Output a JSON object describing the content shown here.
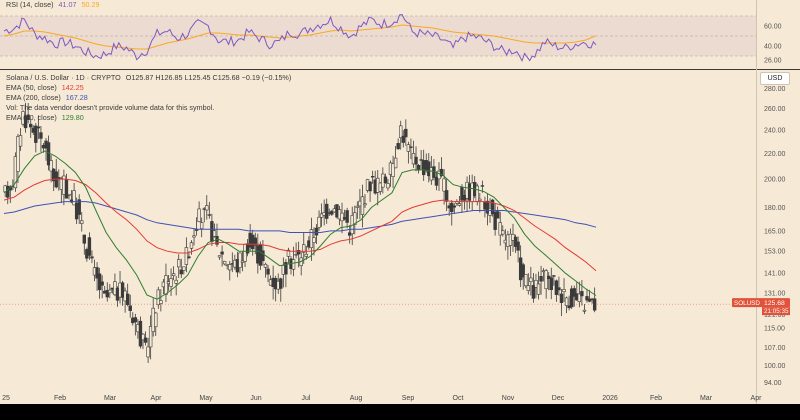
{
  "header": {
    "symbol_line": "Solana / U.S. Dollar · 1D · CRYPTO",
    "ohlc": "O125.87  H126.85  L125.45  C125.68  −0.19 (−0.15%)",
    "ema50_label": "EMA (50, close)",
    "ema50_value": "142.25",
    "ema200_label": "EMA (200, close)",
    "ema200_value": "167.28",
    "vol_note": "Vol: The data vendor doesn't provide volume data for this symbol.",
    "ema20_label": "EMA (20, close)",
    "ema20_value": "129.80",
    "rsi_label": "RSI (14, close)",
    "rsi_value": "41.07",
    "rsi_ma_value": "50.29",
    "currency": "USD"
  },
  "price_badge": {
    "symbol": "SOLUSD",
    "price": "125.68",
    "countdown": "21:05:35"
  },
  "colors": {
    "background": "#f6ead6",
    "candle_up": "#3b3b3b",
    "candle_down": "#3b3b3b",
    "candle_up_fill": "#f6ead6",
    "ema20": "#2e7d32",
    "ema50": "#e53935",
    "ema200": "#3f51b5",
    "rsi_line": "#7e57c2",
    "rsi_ma": "#f9a825",
    "rsi_band": "#e8d6cf",
    "badge": "#e0533a"
  },
  "chart_data": [
    {
      "type": "candlestick",
      "title": "Solana / U.S. Dollar · 1D · CRYPTO",
      "x_ticks": [
        "25",
        "Feb",
        "Mar",
        "Apr",
        "May",
        "Jun",
        "Jul",
        "Aug",
        "Sep",
        "Oct",
        "Nov",
        "Dec",
        "2026",
        "Feb",
        "Mar",
        "Apr"
      ],
      "y_ticks": [
        94.0,
        100.0,
        107.0,
        115.0,
        121.0,
        131.0,
        141.0,
        153.0,
        165.0,
        180.0,
        200.0,
        220.0,
        240.0,
        260.0,
        280.0
      ],
      "y_scale": "log",
      "ylim": [
        90,
        300
      ],
      "close_weekly": [
        185,
        200,
        255,
        240,
        228,
        200,
        195,
        185,
        160,
        140,
        128,
        132,
        130,
        118,
        105,
        125,
        138,
        142,
        150,
        172,
        175,
        155,
        148,
        145,
        158,
        152,
        140,
        135,
        148,
        150,
        158,
        170,
        182,
        178,
        168,
        182,
        198,
        196,
        205,
        242,
        218,
        212,
        205,
        198,
        178,
        190,
        192,
        188,
        175,
        162,
        158,
        138,
        132,
        138,
        135,
        130,
        128,
        126,
        125.68
      ],
      "series": [
        {
          "name": "EMA (20, close)",
          "last": 129.8
        },
        {
          "name": "EMA (50, close)",
          "last": 142.25
        },
        {
          "name": "EMA (200, close)",
          "last": 167.28
        }
      ],
      "ema20": [
        190,
        196,
        208,
        218,
        222,
        218,
        212,
        205,
        194,
        178,
        164,
        155,
        148,
        140,
        130,
        128,
        131,
        135,
        140,
        150,
        158,
        160,
        157,
        153,
        153,
        153,
        149,
        145,
        146,
        147,
        150,
        156,
        163,
        167,
        168,
        172,
        180,
        185,
        190,
        205,
        207,
        207,
        206,
        203,
        196,
        194,
        193,
        191,
        187,
        180,
        173,
        163,
        156,
        151,
        146,
        141,
        137,
        133,
        129.8
      ],
      "ema50": [
        185,
        187,
        192,
        196,
        199,
        200,
        200,
        199,
        196,
        190,
        183,
        177,
        172,
        166,
        159,
        155,
        153,
        152,
        152,
        154,
        157,
        158,
        158,
        157,
        157,
        157,
        156,
        154,
        153,
        153,
        153,
        154,
        157,
        159,
        160,
        162,
        165,
        168,
        171,
        177,
        180,
        182,
        184,
        185,
        184,
        184,
        184,
        184,
        183,
        181,
        178,
        173,
        168,
        164,
        160,
        155,
        151,
        147,
        142.25
      ],
      "ema200": [
        176,
        177,
        179,
        181,
        182,
        183,
        184,
        184,
        184,
        183,
        181,
        179,
        177,
        175,
        172,
        170,
        169,
        168,
        167,
        166,
        166,
        166,
        166,
        166,
        165,
        165,
        165,
        165,
        164,
        164,
        164,
        164,
        165,
        165,
        166,
        166,
        167,
        168,
        169,
        171,
        172,
        173,
        174,
        175,
        176,
        177,
        178,
        178,
        178,
        178,
        177,
        176,
        175,
        174,
        173,
        172,
        170,
        169,
        167.28
      ],
      "last_price": 125.68
    },
    {
      "type": "line",
      "title": "RSI (14, close)",
      "y_ticks": [
        26.0,
        40.0,
        60.0
      ],
      "ylim": [
        20,
        80
      ],
      "band": [
        30,
        70
      ],
      "series": [
        {
          "name": "RSI (14, close)",
          "last": 41.07,
          "values": [
            55,
            58,
            66,
            52,
            48,
            42,
            44,
            40,
            34,
            30,
            32,
            40,
            38,
            30,
            36,
            52,
            55,
            48,
            52,
            62,
            60,
            46,
            44,
            46,
            54,
            48,
            42,
            44,
            54,
            52,
            58,
            62,
            66,
            58,
            50,
            60,
            66,
            62,
            64,
            72,
            54,
            52,
            50,
            46,
            38,
            48,
            50,
            46,
            40,
            34,
            36,
            28,
            32,
            44,
            40,
            38,
            42,
            44,
            41.07
          ]
        },
        {
          "name": "RSI MA",
          "last": 50.29,
          "values": [
            50,
            52,
            55,
            55,
            54,
            52,
            50,
            48,
            45,
            42,
            40,
            39,
            38,
            37,
            37,
            40,
            43,
            45,
            47,
            50,
            53,
            53,
            52,
            51,
            51,
            50,
            49,
            48,
            49,
            50,
            51,
            53,
            55,
            56,
            55,
            56,
            57,
            58,
            59,
            61,
            60,
            59,
            58,
            56,
            54,
            53,
            52,
            51,
            50,
            48,
            46,
            44,
            43,
            43,
            43,
            43,
            44,
            46,
            50.29
          ]
        }
      ]
    }
  ]
}
